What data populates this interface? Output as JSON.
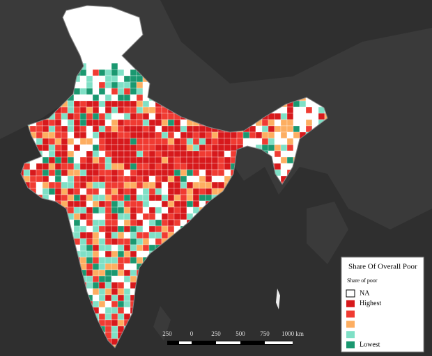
{
  "legend": {
    "title": "Share Of Overall Poor",
    "subtitle": "Share of poor",
    "items": [
      {
        "label": "NA",
        "color": "#ffffff"
      },
      {
        "label": "Highest",
        "color": "#d7191c"
      },
      {
        "label": null,
        "color": "#f03b32"
      },
      {
        "label": null,
        "color": "#fdae61"
      },
      {
        "label": null,
        "color": "#7fe0c6"
      },
      {
        "label": "Lowest",
        "color": "#1a9870"
      }
    ]
  },
  "scale": {
    "labels": [
      "250",
      "0",
      "250",
      "500",
      "750",
      "1000 km"
    ]
  }
}
